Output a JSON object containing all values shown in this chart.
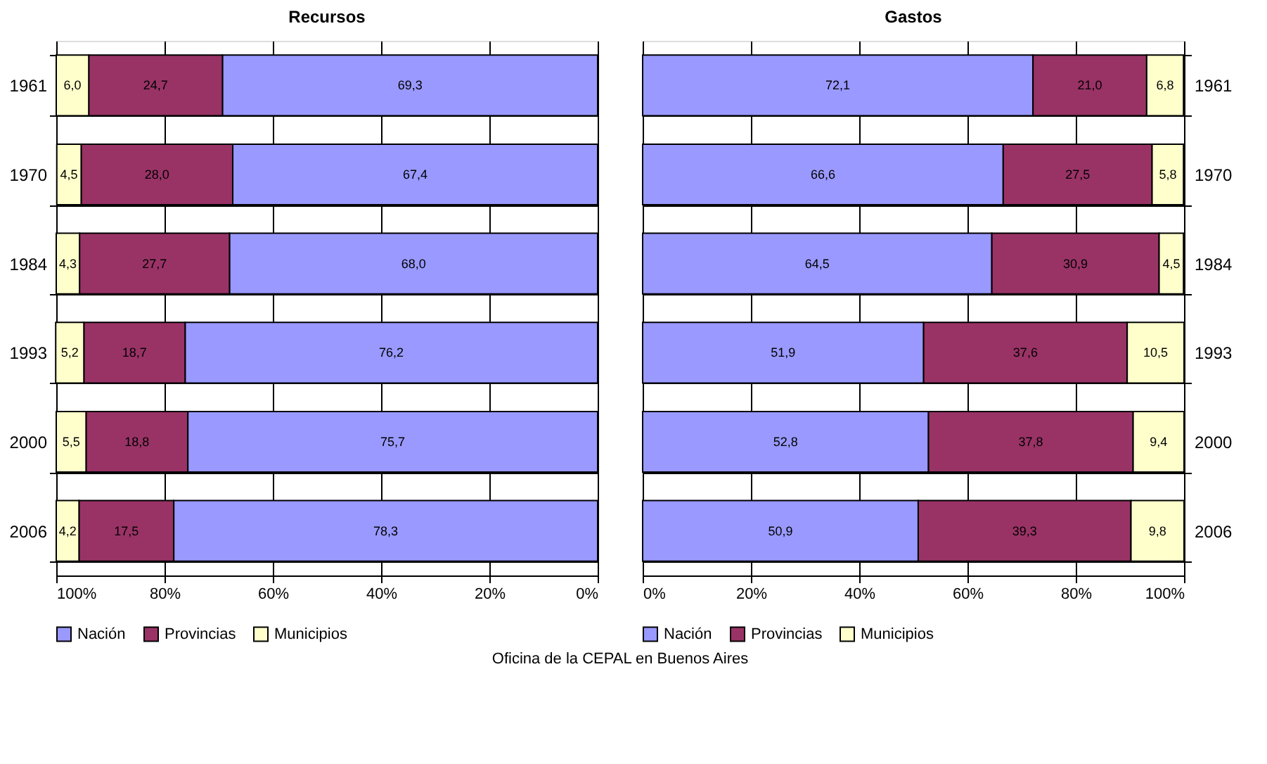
{
  "chart_data": [
    {
      "type": "bar",
      "title": "Recursos",
      "orientation": "horizontal",
      "stacked": true,
      "categories": [
        "1961",
        "1970",
        "1984",
        "1993",
        "2000",
        "2006"
      ],
      "xlim": [
        100,
        0
      ],
      "xticks": [
        {
          "value": 100,
          "label": "100%"
        },
        {
          "value": 80,
          "label": "80%"
        },
        {
          "value": 60,
          "label": "60%"
        },
        {
          "value": 40,
          "label": "40%"
        },
        {
          "value": 20,
          "label": "20%"
        },
        {
          "value": 0,
          "label": "0%"
        }
      ],
      "grid": true,
      "legend": "bottom",
      "series": [
        {
          "name": "Nación",
          "color": "#9999ff",
          "values": [
            69.3,
            67.4,
            68.0,
            76.2,
            75.7,
            78.3
          ],
          "value_labels": [
            "69,3",
            "67,4",
            "68,0",
            "76,2",
            "75,7",
            "78,3"
          ]
        },
        {
          "name": "Provincias",
          "color": "#993366",
          "values": [
            24.7,
            28.0,
            27.7,
            18.7,
            18.8,
            17.5
          ],
          "value_labels": [
            "24,7",
            "28,0",
            "27,7",
            "18,7",
            "18,8",
            "17,5"
          ]
        },
        {
          "name": "Municipios",
          "color": "#ffffcc",
          "values": [
            6.0,
            4.5,
            4.3,
            5.2,
            5.5,
            4.2
          ],
          "value_labels": [
            "6,0",
            "4,5",
            "4,3",
            "5,2",
            "5,5",
            "4,2"
          ]
        }
      ],
      "annotations": [
        "Oficina de la CEPAL en Buenos Aires"
      ]
    },
    {
      "type": "bar",
      "title": "Gastos",
      "orientation": "horizontal",
      "stacked": true,
      "categories": [
        "1961",
        "1970",
        "1984",
        "1993",
        "2000",
        "2006"
      ],
      "xlim": [
        0,
        100
      ],
      "xticks": [
        {
          "value": 0,
          "label": "0%"
        },
        {
          "value": 20,
          "label": "20%"
        },
        {
          "value": 40,
          "label": "40%"
        },
        {
          "value": 60,
          "label": "60%"
        },
        {
          "value": 80,
          "label": "80%"
        },
        {
          "value": 100,
          "label": "100%"
        }
      ],
      "grid": true,
      "legend": "bottom",
      "series": [
        {
          "name": "Nación",
          "color": "#9999ff",
          "values": [
            72.1,
            66.6,
            64.5,
            51.9,
            52.8,
            50.9
          ],
          "value_labels": [
            "72,1",
            "66,6",
            "64,5",
            "51,9",
            "52,8",
            "50,9"
          ]
        },
        {
          "name": "Provincias",
          "color": "#993366",
          "values": [
            21.0,
            27.5,
            30.9,
            37.6,
            37.8,
            39.3
          ],
          "value_labels": [
            "21,0",
            "27,5",
            "30,9",
            "37,6",
            "37,8",
            "39,3"
          ]
        },
        {
          "name": "Municipios",
          "color": "#ffffcc",
          "values": [
            6.8,
            5.8,
            4.5,
            10.5,
            9.4,
            9.8
          ],
          "value_labels": [
            "6,8",
            "5,8",
            "4,5",
            "10,5",
            "9,4",
            "9,8"
          ]
        }
      ]
    }
  ]
}
